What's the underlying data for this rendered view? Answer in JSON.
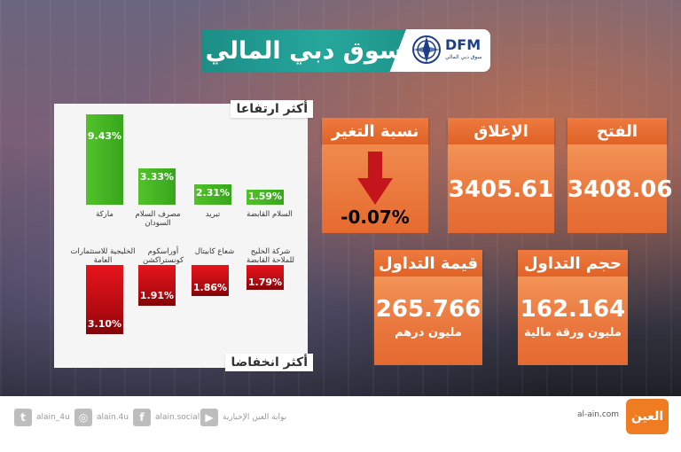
{
  "header": {
    "title": "سوق دبي المالي",
    "logo_text": "DFM",
    "logo_subtext": "سوق دبي المالي"
  },
  "gainers": {
    "label": "أكثر ارتفاعا",
    "items": [
      {
        "name": "ماركة",
        "value": "9.43%"
      },
      {
        "name": "مصرف السلام السودان",
        "value": "3.33%"
      },
      {
        "name": "تبريد",
        "value": "2.31%"
      },
      {
        "name": "السلام القابضة",
        "value": "1.59%"
      }
    ]
  },
  "losers": {
    "label": "أكثر انخفاضا",
    "items": [
      {
        "name": "الخليجية للاستثمارات العامة",
        "value": "3.10%"
      },
      {
        "name": "أوراسكوم كونستراكشن",
        "value": "1.91%"
      },
      {
        "name": "شعاع كابيتال",
        "value": "1.86%"
      },
      {
        "name": "شركة الخليج للملاحة القابضة",
        "value": "1.79%"
      }
    ]
  },
  "stats": {
    "open": {
      "label": "الفتح",
      "value": "3408.06"
    },
    "close": {
      "label": "الإغلاق",
      "value": "3405.61"
    },
    "change": {
      "label": "نسبة التغير",
      "value": "-0.07%"
    },
    "volume": {
      "label": "حجم التداول",
      "value": "162.164",
      "unit": "مليون ورقة مالية"
    },
    "turnover": {
      "label": "قيمة التداول",
      "value": "265.766",
      "unit": "مليون درهم"
    }
  },
  "colors": {
    "gain": "#3aaa1f",
    "loss": "#c8101a",
    "accent": "#e9763c",
    "title_band": "#26a79c"
  },
  "footer": {
    "twitter": "alain_4u",
    "instagram": "alain.4u",
    "facebook": "alain.social",
    "youtube": "بوابة العين الإخبارية",
    "site": "al-ain.com",
    "brand": "العين"
  }
}
